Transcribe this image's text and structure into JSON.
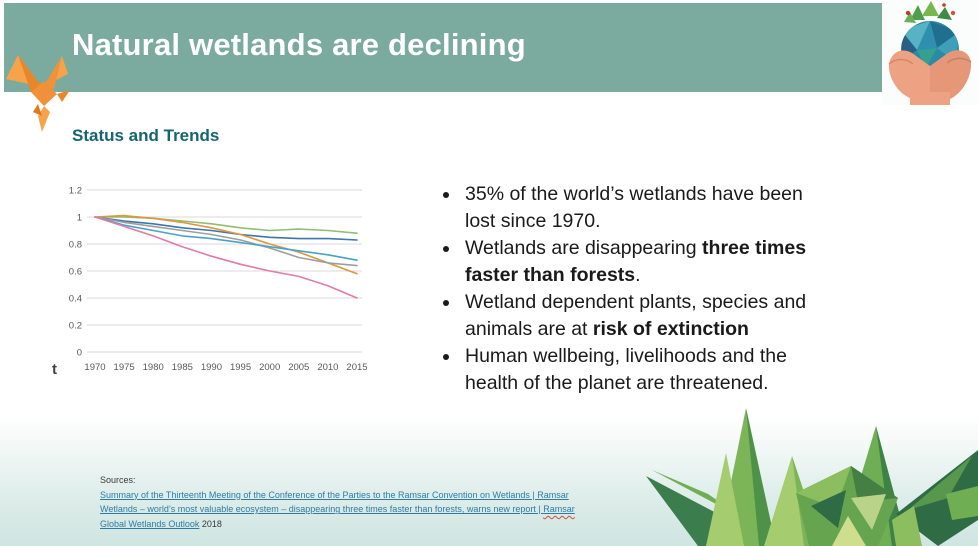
{
  "slide": {
    "title": "Natural wetlands are declining",
    "subtitle": "Status and Trends"
  },
  "colors": {
    "header_bg": "#7BAB9E",
    "subtitle_teal": "#156570",
    "link_blue": "#2E7BA6",
    "accent_orange": "#F09A3E",
    "gridline": "#d8d8d8"
  },
  "chart_data": {
    "type": "line",
    "title": "",
    "xlabel": "t",
    "ylabel": "",
    "x": [
      1970,
      1975,
      1980,
      1985,
      1990,
      1995,
      2000,
      2005,
      2010,
      2015
    ],
    "ylim": [
      0,
      1.2
    ],
    "yticks": [
      0,
      0.2,
      0.4,
      0.6,
      0.8,
      1,
      1.2
    ],
    "grid": true,
    "legend": "none",
    "series": [
      {
        "name": "green-line",
        "color": "#8FBF72",
        "values": [
          1.0,
          1.0,
          0.99,
          0.97,
          0.95,
          0.92,
          0.9,
          0.91,
          0.9,
          0.88
        ]
      },
      {
        "name": "dark-blue-line",
        "color": "#3C76AF",
        "values": [
          1.0,
          0.97,
          0.95,
          0.92,
          0.9,
          0.87,
          0.85,
          0.84,
          0.84,
          0.83
        ]
      },
      {
        "name": "orange-line",
        "color": "#E0963C",
        "values": [
          1.0,
          1.01,
          0.99,
          0.96,
          0.92,
          0.87,
          0.8,
          0.74,
          0.66,
          0.58
        ]
      },
      {
        "name": "gray-line",
        "color": "#9E9E9E",
        "values": [
          1.0,
          0.96,
          0.93,
          0.9,
          0.87,
          0.83,
          0.77,
          0.7,
          0.66,
          0.64
        ]
      },
      {
        "name": "light-blue-line",
        "color": "#47A3C9",
        "values": [
          1.0,
          0.94,
          0.9,
          0.86,
          0.84,
          0.81,
          0.78,
          0.75,
          0.72,
          0.68
        ]
      },
      {
        "name": "pink-line",
        "color": "#E27BA5",
        "values": [
          1.0,
          0.93,
          0.86,
          0.78,
          0.71,
          0.65,
          0.6,
          0.56,
          0.49,
          0.4
        ]
      }
    ]
  },
  "bullets": [
    {
      "segments": [
        {
          "text": "35% of the world’s wetlands have been lost since 1970.",
          "bold": false
        }
      ]
    },
    {
      "segments": [
        {
          "text": "Wetlands are disappearing ",
          "bold": false
        },
        {
          "text": "three times faster than forests",
          "bold": true
        },
        {
          "text": ".",
          "bold": false
        }
      ]
    },
    {
      "segments": [
        {
          "text": "Wetland dependent plants, species and animals are at ",
          "bold": false
        },
        {
          "text": "risk of extinction",
          "bold": true
        }
      ]
    },
    {
      "segments": [
        {
          "text": "Human wellbeing, livelihoods and the health of the planet are threatened.",
          "bold": false
        }
      ]
    }
  ],
  "sources": {
    "label": "Sources:",
    "link1": "Summary of the Thirteenth Meeting of the Conference of the Parties to the Ramsar Convention on Wetlands | Ramsar",
    "link2_main": "Wetlands – world’s most valuable ecosystem – disappearing three times faster than forests, warns new report | ",
    "link2_flagged": "Ramsar",
    "link3": "Global Wetlands Outlook",
    "link3_suffix": " 2018"
  }
}
